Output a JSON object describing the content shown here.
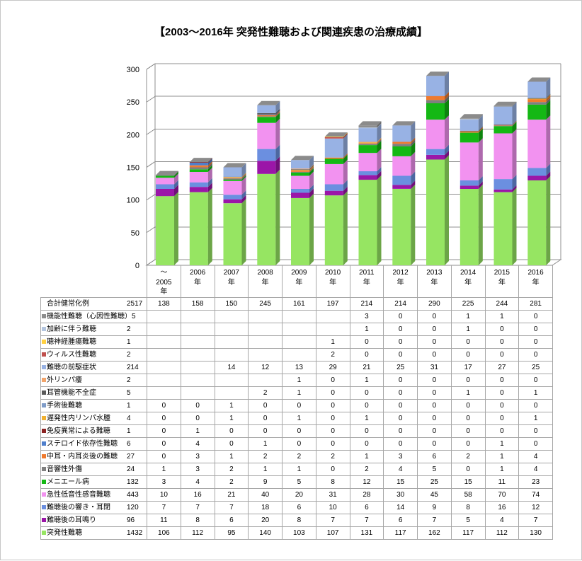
{
  "chart_data": {
    "type": "bar",
    "stacked": true,
    "three_d": true,
    "title": "【2003〜2016年 突発性難聴および関連疾患の治療成績】",
    "categories": [
      "〜\n2005\n年",
      "2006\n年",
      "2007\n年",
      "2008\n年",
      "2009\n年",
      "2010\n年",
      "2011\n年",
      "2012\n年",
      "2013\n年",
      "2014\n年",
      "2015\n年",
      "2016\n年"
    ],
    "ylim": [
      0,
      300
    ],
    "yticks": [
      0,
      50,
      100,
      150,
      200,
      250,
      300
    ],
    "grid": true,
    "legend": "data-table",
    "series": [
      {
        "name": "機能性難聴（心因性難聴）",
        "total": 5,
        "color": "#8d8d8d",
        "values": [
          null,
          null,
          null,
          null,
          null,
          null,
          3,
          0,
          0,
          1,
          1,
          0
        ]
      },
      {
        "name": "加齢に伴う難聴",
        "total": 2,
        "color": "#b3c5df",
        "values": [
          null,
          null,
          null,
          null,
          null,
          null,
          1,
          0,
          0,
          1,
          0,
          0
        ]
      },
      {
        "name": "聴神経腫瘍難聴",
        "total": 1,
        "color": "#ffd040",
        "values": [
          null,
          null,
          null,
          null,
          null,
          1,
          0,
          0,
          0,
          0,
          0,
          0
        ]
      },
      {
        "name": "ウィルス性難聴",
        "total": 2,
        "color": "#c0504d",
        "values": [
          null,
          null,
          null,
          null,
          null,
          2,
          0,
          0,
          0,
          0,
          0,
          0
        ]
      },
      {
        "name": "難聴の前駆症状",
        "total": 214,
        "color": "#98b2e4",
        "values": [
          null,
          null,
          14,
          12,
          13,
          29,
          21,
          25,
          31,
          17,
          27,
          25
        ]
      },
      {
        "name": "外リンパ瘻",
        "total": 2,
        "color": "#f2a46a",
        "values": [
          null,
          null,
          null,
          null,
          1,
          0,
          1,
          0,
          0,
          0,
          0,
          0
        ]
      },
      {
        "name": "耳管機能不全症",
        "total": 5,
        "color": "#5a5a5a",
        "values": [
          null,
          null,
          null,
          2,
          1,
          0,
          0,
          0,
          0,
          1,
          0,
          1
        ]
      },
      {
        "name": "手術後難聴",
        "total": 1,
        "color": "#7f9cc8",
        "values": [
          0,
          0,
          1,
          0,
          0,
          0,
          0,
          0,
          0,
          0,
          0,
          0
        ]
      },
      {
        "name": "遅発性内リンパ水腫",
        "total": 4,
        "color": "#f0b030",
        "values": [
          0,
          0,
          1,
          0,
          1,
          0,
          1,
          0,
          0,
          0,
          0,
          1
        ]
      },
      {
        "name": "免疫異常による難聴",
        "total": 1,
        "color": "#8c2424",
        "values": [
          0,
          1,
          0,
          0,
          0,
          0,
          0,
          0,
          0,
          0,
          0,
          0
        ]
      },
      {
        "name": "ステロイド依存性難聴",
        "total": 6,
        "color": "#4f7fcc",
        "values": [
          0,
          4,
          0,
          1,
          0,
          0,
          0,
          0,
          0,
          0,
          1,
          0
        ]
      },
      {
        "name": "中耳・内耳炎後の難聴",
        "total": 27,
        "color": "#ef7a2e",
        "values": [
          0,
          3,
          1,
          2,
          2,
          2,
          1,
          3,
          6,
          2,
          1,
          4
        ]
      },
      {
        "name": "音響性外傷",
        "total": 24,
        "color": "#7f7f7f",
        "values": [
          1,
          3,
          2,
          1,
          1,
          0,
          2,
          4,
          5,
          0,
          1,
          4
        ]
      },
      {
        "name": "メニエール病",
        "total": 132,
        "color": "#14b814",
        "values": [
          3,
          4,
          2,
          9,
          5,
          8,
          12,
          15,
          25,
          15,
          11,
          23
        ]
      },
      {
        "name": "急性低音性感音難聴",
        "total": 443,
        "color": "#f292f0",
        "values": [
          10,
          16,
          21,
          40,
          20,
          31,
          28,
          30,
          45,
          58,
          70,
          74
        ]
      },
      {
        "name": "難聴後の響き・耳閉",
        "total": 120,
        "color": "#6b8fe0",
        "values": [
          7,
          7,
          7,
          18,
          6,
          10,
          6,
          14,
          9,
          8,
          16,
          12
        ]
      },
      {
        "name": "難聴後の耳鳴り",
        "total": 96,
        "color": "#9b16a8",
        "values": [
          11,
          8,
          6,
          20,
          8,
          7,
          7,
          6,
          7,
          5,
          4,
          7
        ]
      },
      {
        "name": "突発性難聴",
        "total": 1432,
        "color": "#96e562",
        "values": [
          106,
          112,
          95,
          140,
          103,
          107,
          131,
          117,
          162,
          117,
          112,
          130
        ]
      }
    ]
  },
  "data_table": {
    "total_row": {
      "name": "合計健常化例",
      "total": 2517,
      "values": [
        138,
        158,
        150,
        245,
        161,
        197,
        214,
        214,
        290,
        225,
        244,
        281
      ]
    }
  }
}
